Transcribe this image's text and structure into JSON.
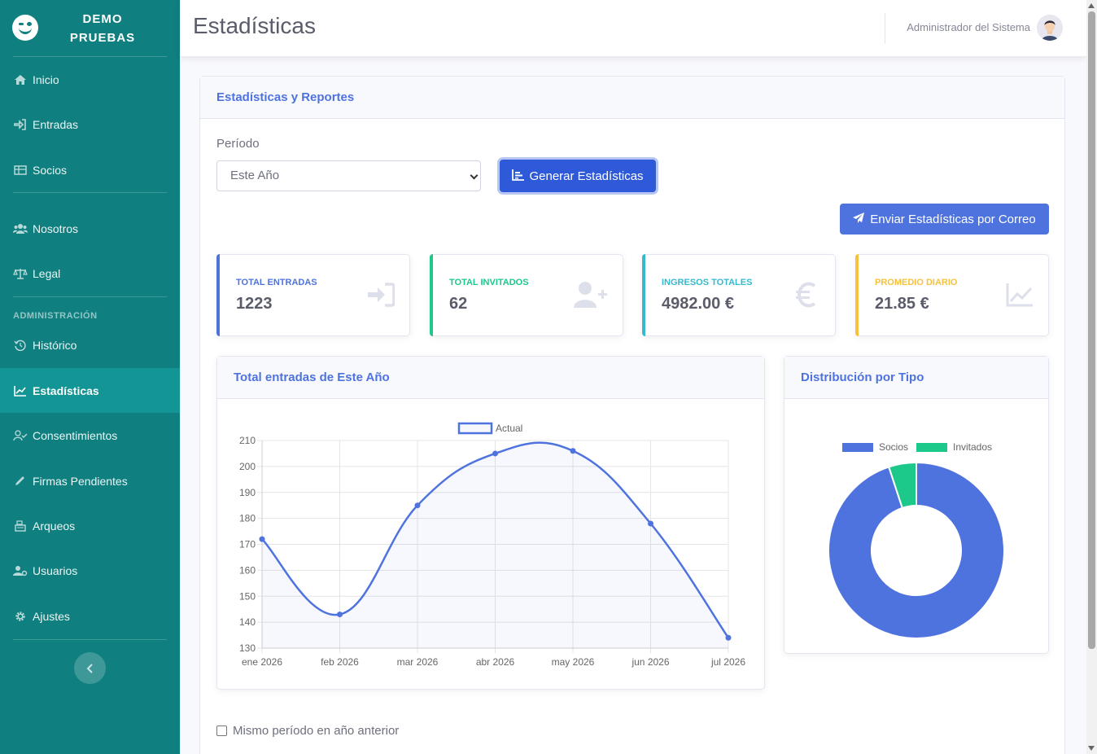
{
  "brand": {
    "line1": "DEMO",
    "line2": "PRUEBAS"
  },
  "sidebar": {
    "items": [
      {
        "label": "Inicio",
        "icon": "home-icon"
      },
      {
        "label": "Entradas",
        "icon": "sign-in-icon"
      },
      {
        "label": "Socios",
        "icon": "table-icon"
      },
      {
        "label": "Nosotros",
        "icon": "users-icon"
      },
      {
        "label": "Legal",
        "icon": "balance-scale-icon"
      },
      {
        "label": "Histórico",
        "icon": "history-icon"
      },
      {
        "label": "Estadísticas",
        "icon": "chart-line-icon",
        "active": true
      },
      {
        "label": "Consentimientos",
        "icon": "user-check-icon"
      },
      {
        "label": "Firmas Pendientes",
        "icon": "pen-icon"
      },
      {
        "label": "Arqueos",
        "icon": "cash-register-icon"
      },
      {
        "label": "Usuarios",
        "icon": "user-cog-icon"
      },
      {
        "label": "Ajustes",
        "icon": "gear-icon"
      }
    ],
    "section_heading": "ADMINISTRACIÓN"
  },
  "header": {
    "title": "Estadísticas",
    "user_name": "Administrador del Sistema"
  },
  "main": {
    "card_title": "Estadísticas y Reportes",
    "period_label": "Período",
    "period_value": "Este Año",
    "generate_button": "Generar Estadísticas",
    "email_button": "Enviar Estadísticas por Correo",
    "compare_label": "Mismo período en año anterior"
  },
  "stats": [
    {
      "label": "TOTAL ENTRADAS",
      "value": "1223",
      "color": "#4e73df",
      "icon": "sign-in-icon"
    },
    {
      "label": "TOTAL INVITADOS",
      "value": "62",
      "color": "#1cc88a",
      "icon": "user-plus-icon"
    },
    {
      "label": "INGRESOS TOTALES",
      "value": "4982.00 €",
      "color": "#36b9cc",
      "icon": "euro-icon"
    },
    {
      "label": "PROMEDIO DIARIO",
      "value": "21.85 €",
      "color": "#f6c23e",
      "icon": "chart-line-icon"
    }
  ],
  "chart_data": [
    {
      "type": "line",
      "title": "Total entradas de Este Año",
      "categories": [
        "ene 2026",
        "feb 2026",
        "mar 2026",
        "abr 2026",
        "may 2026",
        "jun 2026",
        "jul 2026"
      ],
      "series": [
        {
          "name": "Actual",
          "values": [
            172,
            143,
            185,
            205,
            206,
            178,
            134
          ],
          "color": "#4e73df"
        }
      ],
      "ylim": [
        130,
        210
      ],
      "yticks": [
        130,
        140,
        150,
        160,
        170,
        180,
        190,
        200,
        210
      ],
      "legend": "top",
      "grid": true
    },
    {
      "type": "pie",
      "title": "Distribución por Tipo",
      "labels": [
        "Socios",
        "Invitados"
      ],
      "values": [
        1161,
        62
      ],
      "colors": [
        "#4e73df",
        "#1cc88a"
      ],
      "legend": "top"
    }
  ]
}
